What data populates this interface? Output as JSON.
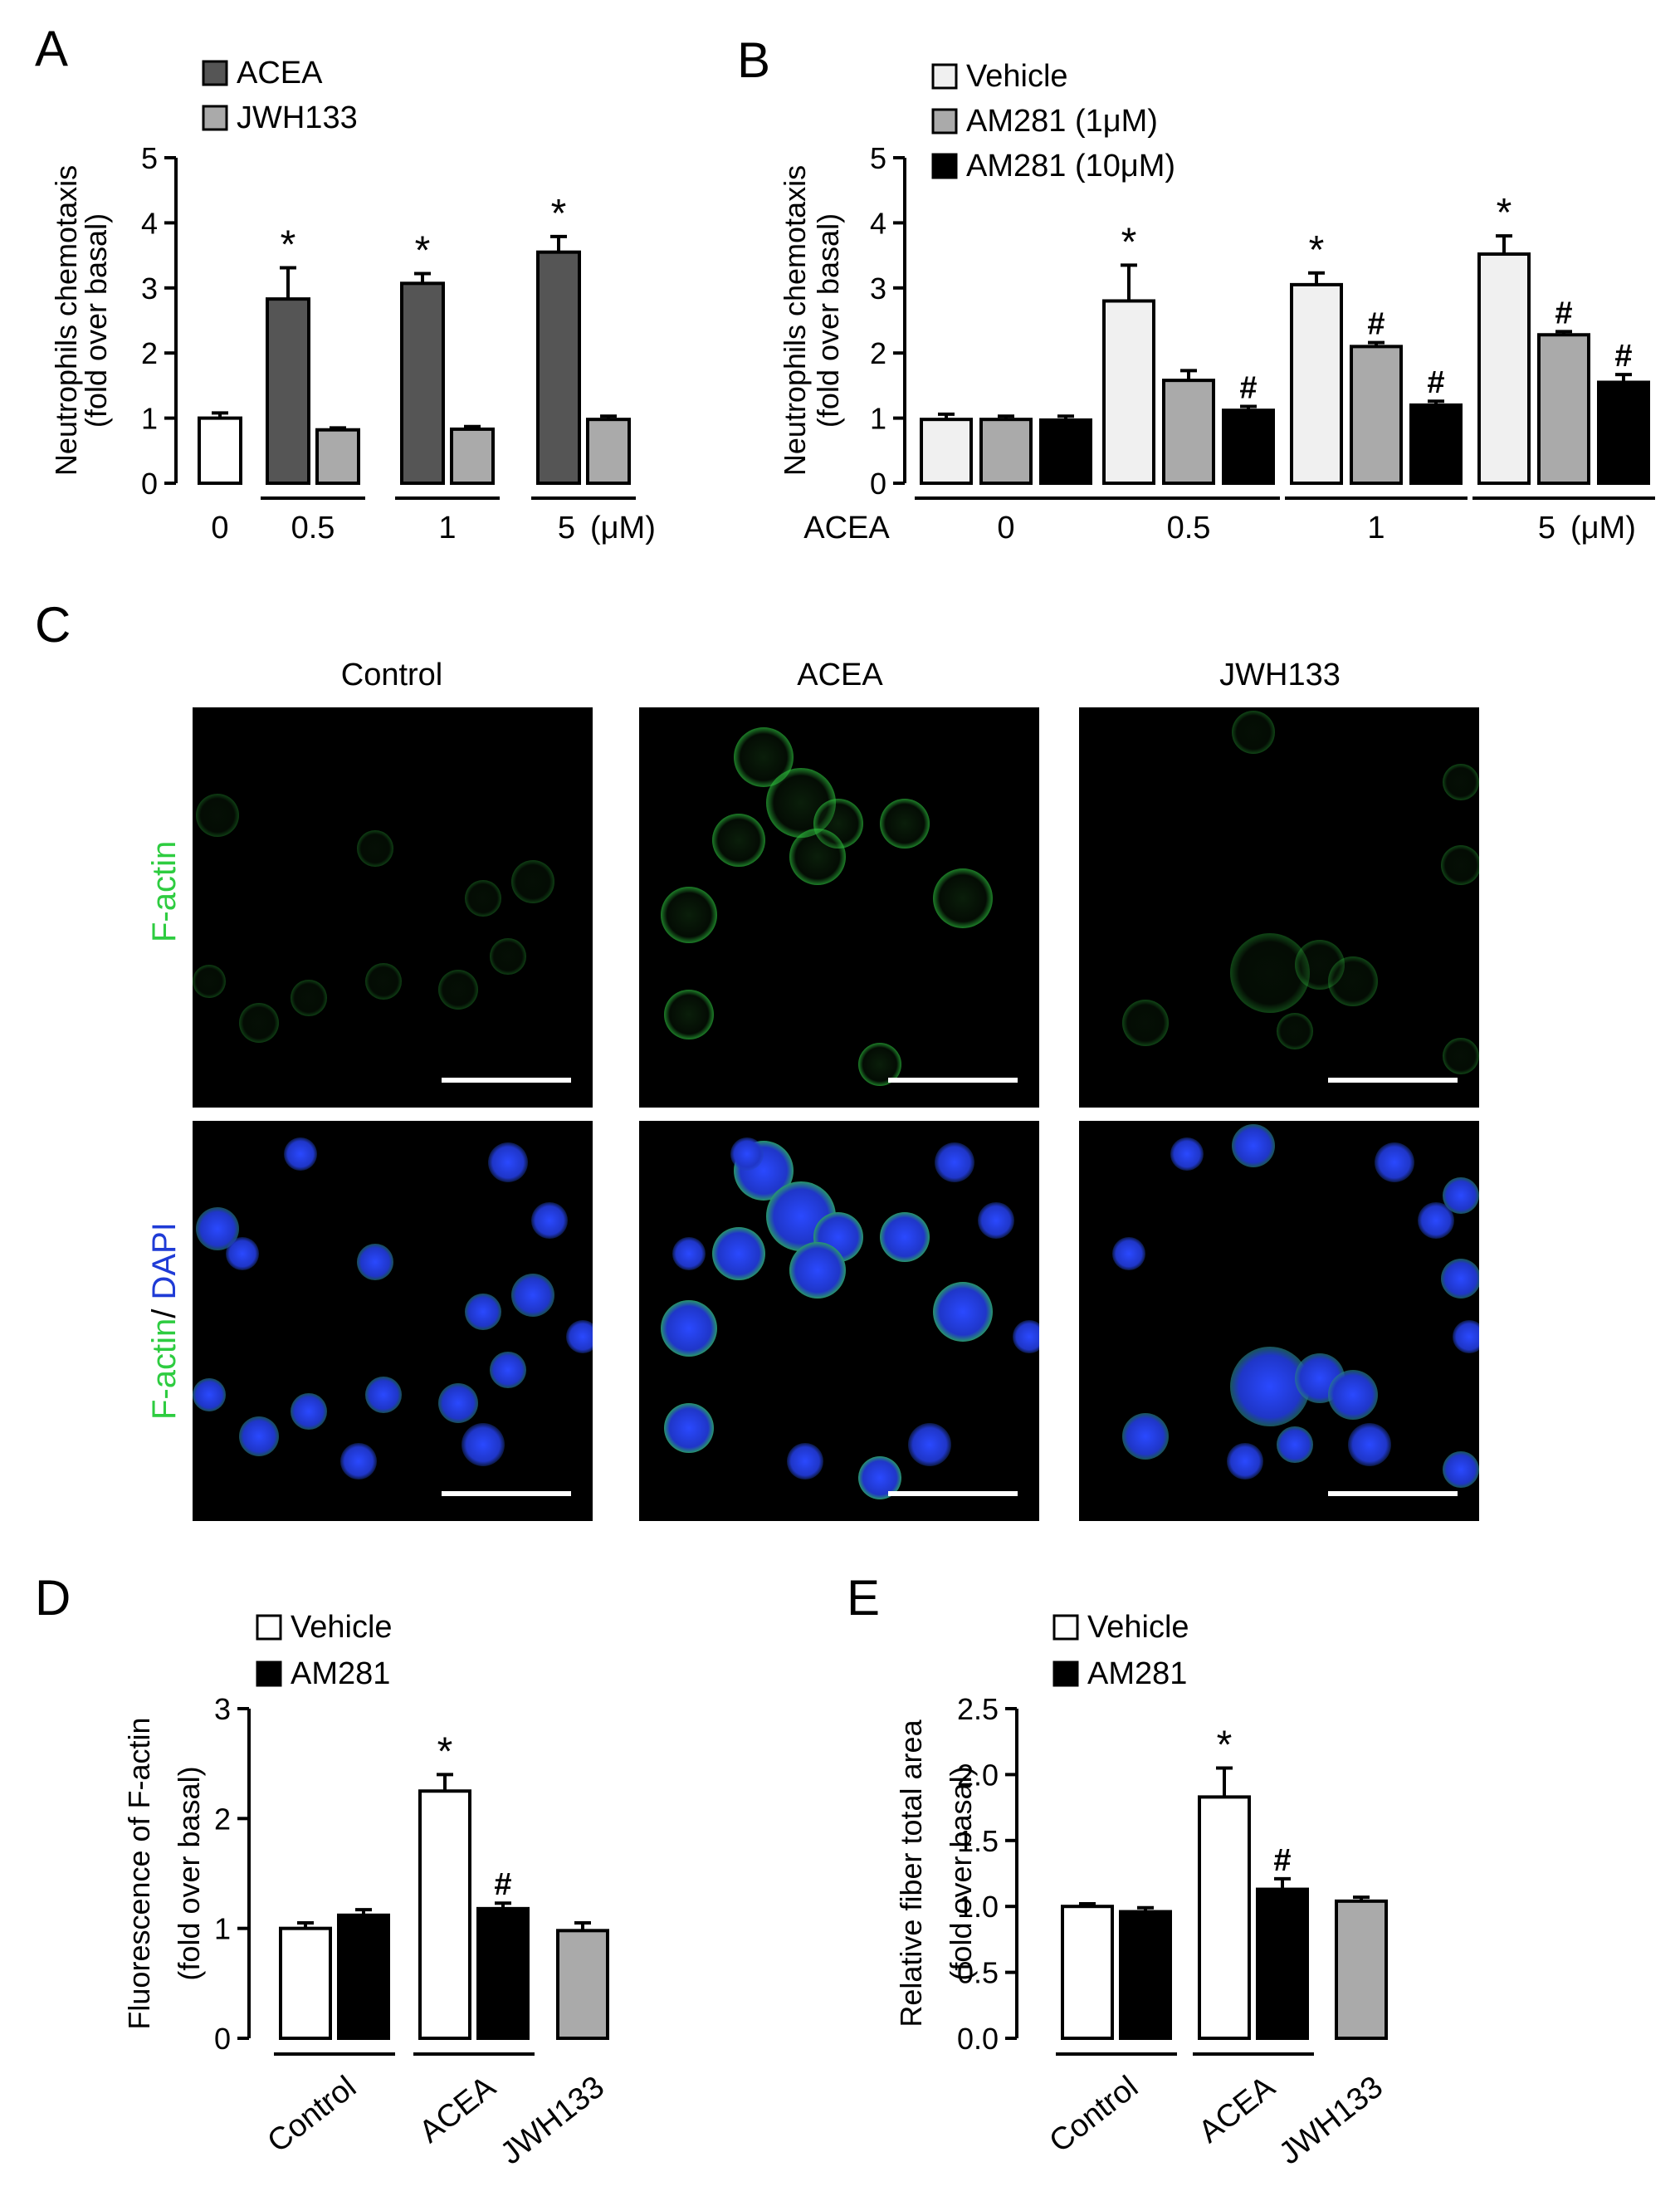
{
  "panels": {
    "A": {
      "letter": "A"
    },
    "B": {
      "letter": "B"
    },
    "C": {
      "letter": "C"
    },
    "D": {
      "letter": "D"
    },
    "E": {
      "letter": "E"
    }
  },
  "micro": {
    "columns": [
      "Control",
      "ACEA",
      "JWH133"
    ],
    "row1_label": "F-actin",
    "row2_label_green": "F-actin",
    "row2_label_sep": "/ ",
    "row2_label_blue": "DAPI",
    "colors": {
      "factin": "#2ecc40",
      "dapi": "#1f3bd6"
    }
  },
  "chart_data": [
    {
      "id": "A",
      "type": "bar",
      "ylabel": [
        "Neutrophils chemotaxis",
        "(fold over basal)"
      ],
      "ylim": [
        0,
        5
      ],
      "yticks": [
        0,
        1,
        2,
        3,
        4,
        5
      ],
      "legend": [
        {
          "name": "ACEA",
          "color": "#555555"
        },
        {
          "name": "JWH133",
          "color": "#aaaaaa"
        }
      ],
      "groups": [
        {
          "label": "0",
          "bars": [
            {
              "value": 1.0,
              "err": 0.08,
              "color": "#ffffff",
              "mark": ""
            }
          ]
        },
        {
          "label": "0.5",
          "bars": [
            {
              "value": 2.83,
              "err": 0.48,
              "color": "#555555",
              "mark": "*"
            },
            {
              "value": 0.82,
              "err": 0.03,
              "color": "#aaaaaa",
              "mark": ""
            }
          ]
        },
        {
          "label": "1",
          "bars": [
            {
              "value": 3.07,
              "err": 0.15,
              "color": "#555555",
              "mark": "*"
            },
            {
              "value": 0.83,
              "err": 0.04,
              "color": "#aaaaaa",
              "mark": ""
            }
          ]
        },
        {
          "label": "5",
          "unit": "(μM)",
          "bars": [
            {
              "value": 3.55,
              "err": 0.24,
              "color": "#555555",
              "mark": "*"
            },
            {
              "value": 0.98,
              "err": 0.05,
              "color": "#aaaaaa",
              "mark": ""
            }
          ]
        }
      ]
    },
    {
      "id": "B",
      "type": "bar",
      "ylabel": [
        "Neutrophils chemotaxis",
        "(fold over basal)"
      ],
      "xlabel": "ACEA",
      "ylim": [
        0,
        5
      ],
      "yticks": [
        0,
        1,
        2,
        3,
        4,
        5
      ],
      "legend": [
        {
          "name": "Vehicle",
          "color": "#f0f0f0"
        },
        {
          "name": "AM281 (1μM)",
          "color": "#aaaaaa"
        },
        {
          "name": "AM281 (10μM)",
          "color": "#000000"
        }
      ],
      "groups": [
        {
          "label": "0",
          "bars": [
            {
              "value": 0.98,
              "err": 0.08,
              "color": "#f0f0f0",
              "mark": ""
            },
            {
              "value": 0.98,
              "err": 0.05,
              "color": "#aaaaaa",
              "mark": ""
            },
            {
              "value": 0.97,
              "err": 0.06,
              "color": "#000000",
              "mark": ""
            }
          ]
        },
        {
          "label": "0.5",
          "bars": [
            {
              "value": 2.8,
              "err": 0.55,
              "color": "#f0f0f0",
              "mark": "*"
            },
            {
              "value": 1.58,
              "err": 0.15,
              "color": "#aaaaaa",
              "mark": ""
            },
            {
              "value": 1.12,
              "err": 0.06,
              "color": "#000000",
              "mark": "#"
            }
          ]
        },
        {
          "label": "1",
          "bars": [
            {
              "value": 3.05,
              "err": 0.18,
              "color": "#f0f0f0",
              "mark": "*"
            },
            {
              "value": 2.1,
              "err": 0.06,
              "color": "#aaaaaa",
              "mark": "#"
            },
            {
              "value": 1.2,
              "err": 0.06,
              "color": "#000000",
              "mark": "#"
            }
          ]
        },
        {
          "label": "5",
          "unit": "(μM)",
          "bars": [
            {
              "value": 3.52,
              "err": 0.28,
              "color": "#f0f0f0",
              "mark": "*"
            },
            {
              "value": 2.28,
              "err": 0.05,
              "color": "#aaaaaa",
              "mark": "#"
            },
            {
              "value": 1.55,
              "err": 0.12,
              "color": "#000000",
              "mark": "#"
            }
          ]
        }
      ]
    },
    {
      "id": "D",
      "type": "bar",
      "ylabel": [
        "Fluorescence of F-actin",
        "(fold over basal)"
      ],
      "ylim": [
        0,
        3
      ],
      "yticks": [
        0,
        1,
        2,
        3
      ],
      "legend": [
        {
          "name": "Vehicle",
          "color": "#ffffff"
        },
        {
          "name": "AM281",
          "color": "#000000"
        }
      ],
      "groups": [
        {
          "label": "Control",
          "bars": [
            {
              "value": 1.0,
              "err": 0.05,
              "color": "#ffffff",
              "mark": ""
            },
            {
              "value": 1.12,
              "err": 0.05,
              "color": "#000000",
              "mark": ""
            }
          ]
        },
        {
          "label": "ACEA",
          "bars": [
            {
              "value": 2.25,
              "err": 0.15,
              "color": "#ffffff",
              "mark": "*"
            },
            {
              "value": 1.18,
              "err": 0.05,
              "color": "#000000",
              "mark": "#"
            }
          ]
        },
        {
          "label": "JWH133",
          "bars": [
            {
              "value": 0.98,
              "err": 0.07,
              "color": "#aaaaaa",
              "mark": ""
            }
          ]
        }
      ]
    },
    {
      "id": "E",
      "type": "bar",
      "ylabel": [
        "Relative fiber total area",
        "(fold over basal)"
      ],
      "ylim": [
        0,
        2.5
      ],
      "yticks": [
        0.0,
        0.5,
        1.0,
        1.5,
        2.0,
        2.5
      ],
      "ytick_labels": [
        "0.0",
        "0.5",
        "1.0",
        "1.5",
        "2.0",
        "2.5"
      ],
      "legend": [
        {
          "name": "Vehicle",
          "color": "#ffffff"
        },
        {
          "name": "AM281",
          "color": "#000000"
        }
      ],
      "groups": [
        {
          "label": "Control",
          "bars": [
            {
              "value": 1.0,
              "err": 0.02,
              "color": "#ffffff",
              "mark": ""
            },
            {
              "value": 0.96,
              "err": 0.03,
              "color": "#000000",
              "mark": ""
            }
          ]
        },
        {
          "label": "ACEA",
          "bars": [
            {
              "value": 1.83,
              "err": 0.22,
              "color": "#ffffff",
              "mark": "*"
            },
            {
              "value": 1.13,
              "err": 0.08,
              "color": "#000000",
              "mark": "#"
            }
          ]
        },
        {
          "label": "JWH133",
          "bars": [
            {
              "value": 1.04,
              "err": 0.03,
              "color": "#aaaaaa",
              "mark": ""
            }
          ]
        }
      ]
    }
  ]
}
